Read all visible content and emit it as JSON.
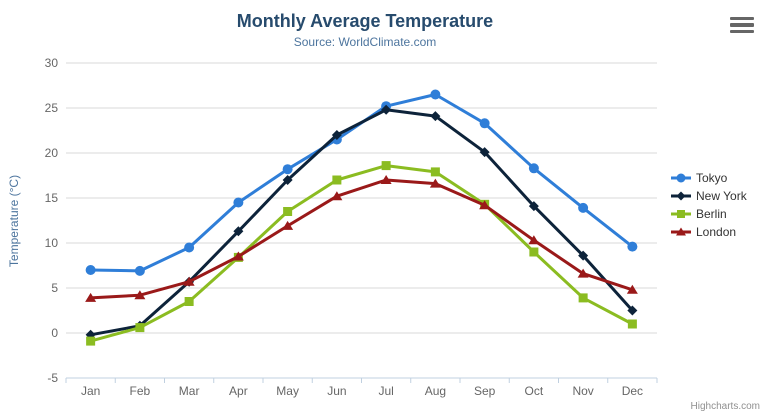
{
  "credits": "Highcharts.com",
  "export_menu": {
    "icon": "hamburger-icon"
  },
  "palette": {
    "title": "#274b6d",
    "subtitle": "#4d759e",
    "axis_label": "#666666",
    "axis_line": "#c0d0e0",
    "gridline": "#d8d8d8",
    "legend_text": "#333333"
  },
  "chart_data": {
    "type": "line",
    "title": "Monthly Average Temperature",
    "subtitle": "Source: WorldClimate.com",
    "xlabel": "",
    "ylabel": "Temperature (°C)",
    "ylim": [
      -5,
      30
    ],
    "ytick_step": 5,
    "grid": true,
    "legend_position": "right",
    "categories": [
      "Jan",
      "Feb",
      "Mar",
      "Apr",
      "May",
      "Jun",
      "Jul",
      "Aug",
      "Sep",
      "Oct",
      "Nov",
      "Dec"
    ],
    "series": [
      {
        "name": "Tokyo",
        "color": "#2f7ed8",
        "marker": "circle",
        "values": [
          7.0,
          6.9,
          9.5,
          14.5,
          18.2,
          21.5,
          25.2,
          26.5,
          23.3,
          18.3,
          13.9,
          9.6
        ]
      },
      {
        "name": "New York",
        "color": "#0d233a",
        "marker": "diamond",
        "values": [
          -0.2,
          0.8,
          5.7,
          11.3,
          17.0,
          22.0,
          24.8,
          24.1,
          20.1,
          14.1,
          8.6,
          2.5
        ]
      },
      {
        "name": "Berlin",
        "color": "#8bbc21",
        "marker": "square",
        "values": [
          -0.9,
          0.6,
          3.5,
          8.4,
          13.5,
          17.0,
          18.6,
          17.9,
          14.3,
          9.0,
          3.9,
          1.0
        ]
      },
      {
        "name": "London",
        "color": "#9a1919",
        "marker": "triangle",
        "values": [
          3.9,
          4.2,
          5.7,
          8.5,
          11.9,
          15.2,
          17.0,
          16.6,
          14.2,
          10.3,
          6.6,
          4.8
        ]
      }
    ]
  }
}
